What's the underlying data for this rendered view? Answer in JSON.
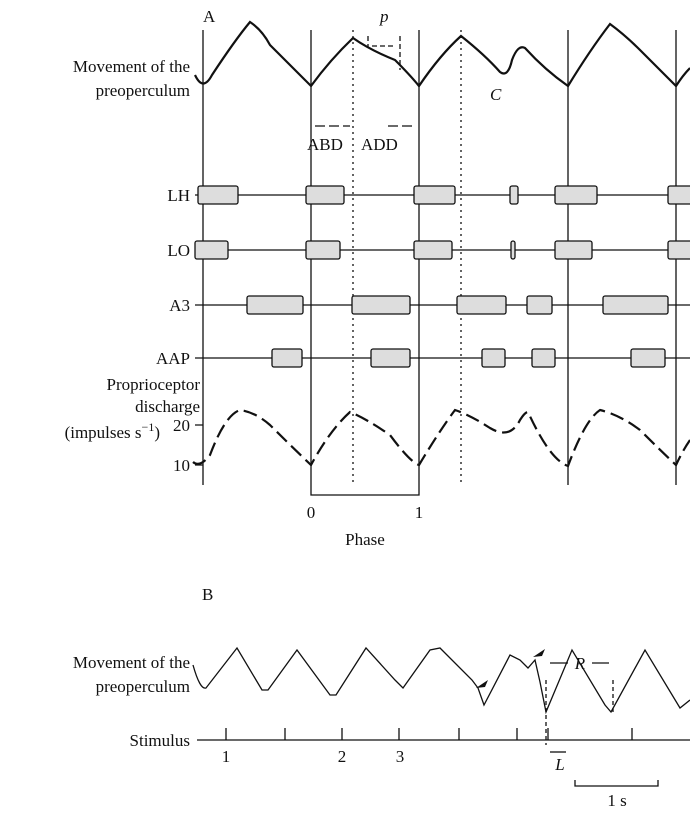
{
  "panel_a": {
    "label": "A",
    "p_label": "p",
    "trace_label": [
      "Movement of the",
      "preoperculum"
    ],
    "c_label": "C",
    "abd": "ABD",
    "add": "ADD",
    "rows": [
      "LH",
      "LO",
      "A3",
      "AAP"
    ],
    "prop_label": [
      "Proprioceptor",
      "discharge"
    ],
    "prop_unit": "(impulses s",
    "prop_unit_exp": "−1",
    "prop_unit_close": ")",
    "ticks": [
      "20",
      "10"
    ],
    "phase_ticks": [
      "0",
      "1"
    ],
    "phase": "Phase"
  },
  "panel_b": {
    "label": "B",
    "trace_label": [
      "Movement of the",
      "preoperculum"
    ],
    "stimulus": "Stimulus",
    "stim_numbers": [
      "1",
      "2",
      "3"
    ],
    "l_label": "L",
    "r_label": "R",
    "scale": "1 s"
  }
}
